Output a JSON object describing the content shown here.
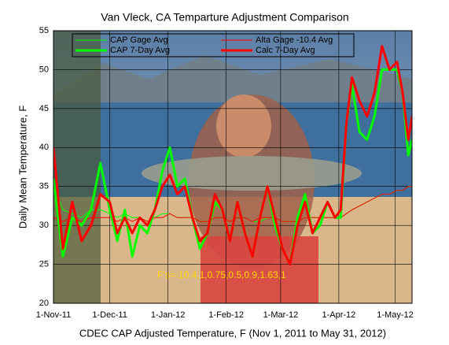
{
  "chart_data": {
    "type": "line",
    "title": "Van Vleck, CA Temparture Adjustment Comparison",
    "ylabel": "Daily Mean Temperature, F",
    "xlabel": "CDEC CAP Adjusted Temperature, F (Nov 1, 2011 to May 31, 2012)",
    "annotation": "F's=-10.4,1,0.75,0.5,0.9,1.63,1",
    "x": [
      0,
      5,
      10,
      15,
      20,
      25,
      30,
      34,
      38,
      42,
      46,
      50,
      54,
      58,
      62,
      66,
      70,
      74,
      78,
      82,
      86,
      90,
      94,
      98,
      102,
      106,
      110,
      114,
      118,
      122,
      126,
      130,
      134,
      138,
      142,
      146,
      150,
      153,
      156,
      159,
      163,
      167,
      171,
      175,
      179,
      183,
      186,
      189,
      191
    ],
    "xlim": [
      0,
      191
    ],
    "xticks": [
      {
        "value": 0,
        "label": "1-Nov-11"
      },
      {
        "value": 30,
        "label": "1-Dec-11"
      },
      {
        "value": 61,
        "label": "1-Jan-12"
      },
      {
        "value": 92,
        "label": "1-Feb-12"
      },
      {
        "value": 121,
        "label": "1-Mar-12"
      },
      {
        "value": 152,
        "label": "1-Apr-12"
      },
      {
        "value": 182,
        "label": "1-May-12"
      }
    ],
    "ylim": [
      20,
      55
    ],
    "yticks": [
      20,
      25,
      30,
      35,
      40,
      45,
      50,
      55
    ],
    "grid": true,
    "series": [
      {
        "name": "CAP Gage Avg",
        "color": "#00ff00",
        "width": 1,
        "values": [
          35,
          32,
          31.5,
          31,
          32,
          32,
          31.5,
          31,
          31.5,
          31,
          31,
          30.5,
          31,
          31.5,
          31.5,
          31,
          31,
          31,
          30.5,
          30.5,
          31,
          31,
          30.5,
          31,
          31,
          30.5,
          30.5,
          31,
          31,
          30.5,
          30.5,
          30.5,
          31,
          31,
          31,
          31,
          31,
          31,
          31.5,
          32,
          32.5,
          33,
          33.5,
          34,
          34,
          34.5,
          34.5,
          35,
          35
        ]
      },
      {
        "name": "Alta Gage -10.4 Avg",
        "color": "#ff0000",
        "width": 1,
        "values": [
          31,
          30.5,
          31,
          30.5,
          31,
          31,
          31,
          30.5,
          31,
          30.5,
          31,
          30.5,
          31,
          31,
          31.5,
          31,
          31,
          31,
          30.5,
          30.5,
          31,
          31,
          30.5,
          31,
          31,
          30.5,
          31,
          31,
          31,
          30.5,
          30.5,
          30.5,
          31,
          31,
          31,
          31,
          31,
          31,
          31.5,
          32,
          32.5,
          33,
          33.5,
          34,
          34,
          34.5,
          34.5,
          35,
          35
        ]
      },
      {
        "name": "CAP 7-Day Avg",
        "color": "#00ff00",
        "width": 3,
        "values": [
          36,
          26,
          31,
          30,
          32,
          38,
          32,
          28,
          32,
          26,
          30,
          29,
          32,
          37,
          40,
          35,
          36,
          31,
          27,
          29,
          33,
          32,
          28,
          33,
          29,
          26,
          31,
          35,
          30,
          27,
          25,
          31,
          34,
          29,
          30,
          33,
          31,
          31,
          43,
          48,
          42,
          41,
          44,
          50,
          50,
          50,
          47,
          39,
          41
        ]
      },
      {
        "name": "Calc 7-Day Avg",
        "color": "#ff0000",
        "width": 3,
        "values": [
          40,
          27,
          33,
          28,
          30,
          34,
          33,
          29,
          31,
          29,
          31,
          30,
          32,
          35,
          36.5,
          34,
          35,
          31,
          28,
          29,
          34,
          32,
          28,
          33,
          29,
          26,
          31,
          35,
          31,
          27,
          25,
          30,
          33,
          29,
          31,
          33,
          31,
          32,
          43,
          49,
          46,
          44,
          47,
          53,
          50,
          51,
          47,
          41,
          44
        ]
      }
    ]
  }
}
